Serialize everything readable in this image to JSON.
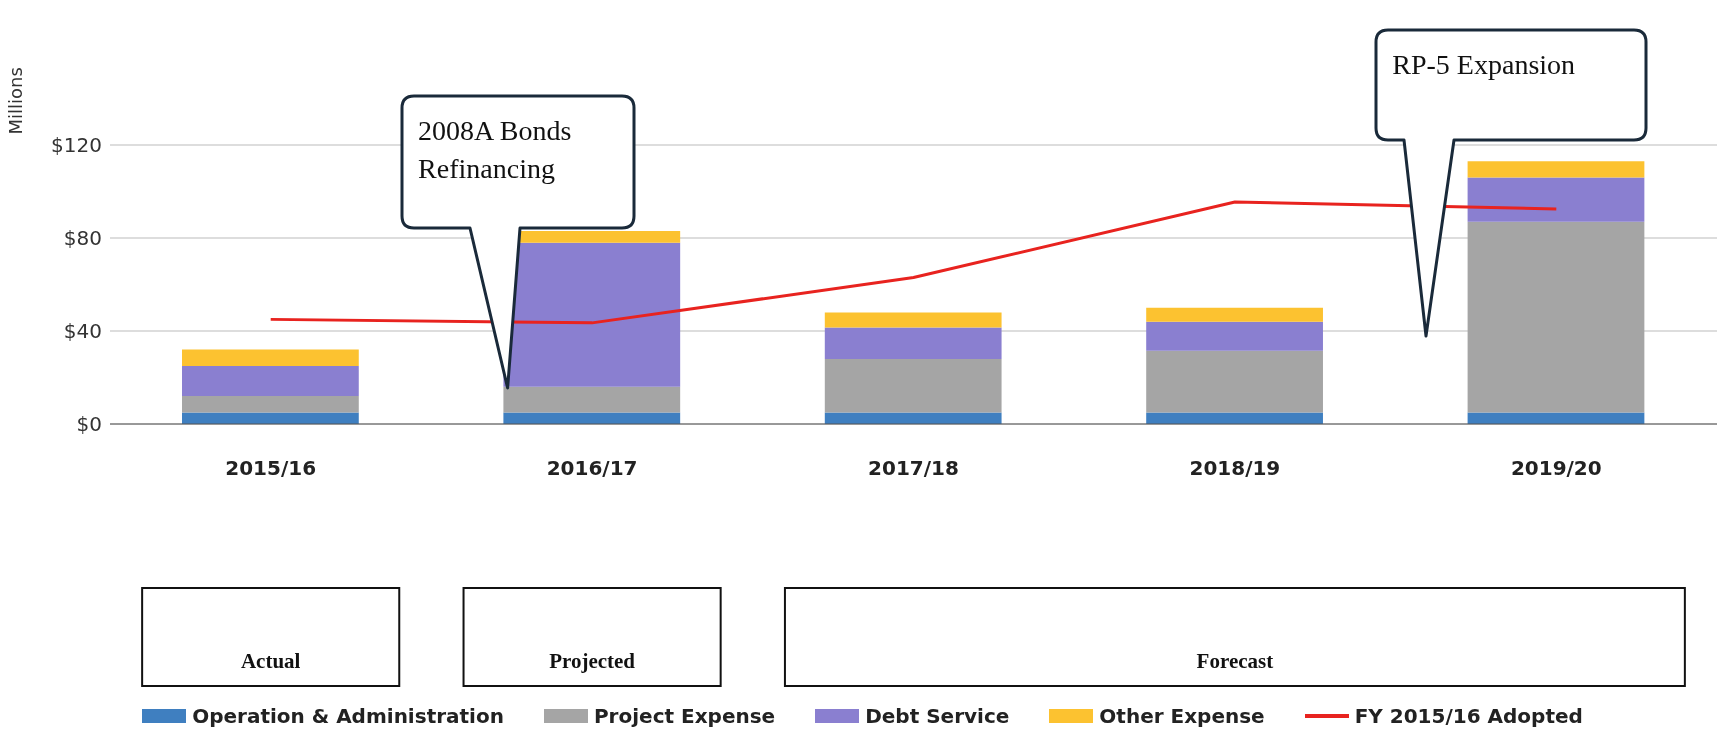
{
  "chart_data": {
    "type": "bar",
    "stacked": true,
    "ylabel": "Millions",
    "categories": [
      "2015/16",
      "2016/17",
      "2017/18",
      "2018/19",
      "2019/20"
    ],
    "series": [
      {
        "name": "Operation & Administration",
        "color": "#3f7fc0",
        "values": [
          5,
          5,
          5,
          5,
          5
        ]
      },
      {
        "name": "Project Expense",
        "color": "#a5a5a5",
        "values": [
          7,
          11,
          23,
          26.5,
          82
        ]
      },
      {
        "name": "Debt Service",
        "color": "#8a7fd0",
        "values": [
          13,
          62,
          13.5,
          12.5,
          19
        ]
      },
      {
        "name": "Other Expense",
        "color": "#fcc230",
        "values": [
          7,
          5,
          6.5,
          6,
          7
        ]
      },
      {
        "name": "FY 2015/16 Adopted",
        "type": "line",
        "color": "#e8231f",
        "values": [
          45,
          43.5,
          63,
          95.5,
          92.5
        ]
      }
    ],
    "ylim": [
      0,
      120
    ],
    "yticks": [
      {
        "value": 0,
        "label": "$0"
      },
      {
        "value": 40,
        "label": "$40"
      },
      {
        "value": 80,
        "label": "$80"
      },
      {
        "value": 120,
        "label": "$120"
      }
    ],
    "grid": "y",
    "legend": "bottom",
    "marker": "none",
    "annotations": [
      "2008A Bonds Refinancing",
      "RP-5 Expansion",
      "Actual",
      "Projected",
      "Forecast"
    ]
  }
}
